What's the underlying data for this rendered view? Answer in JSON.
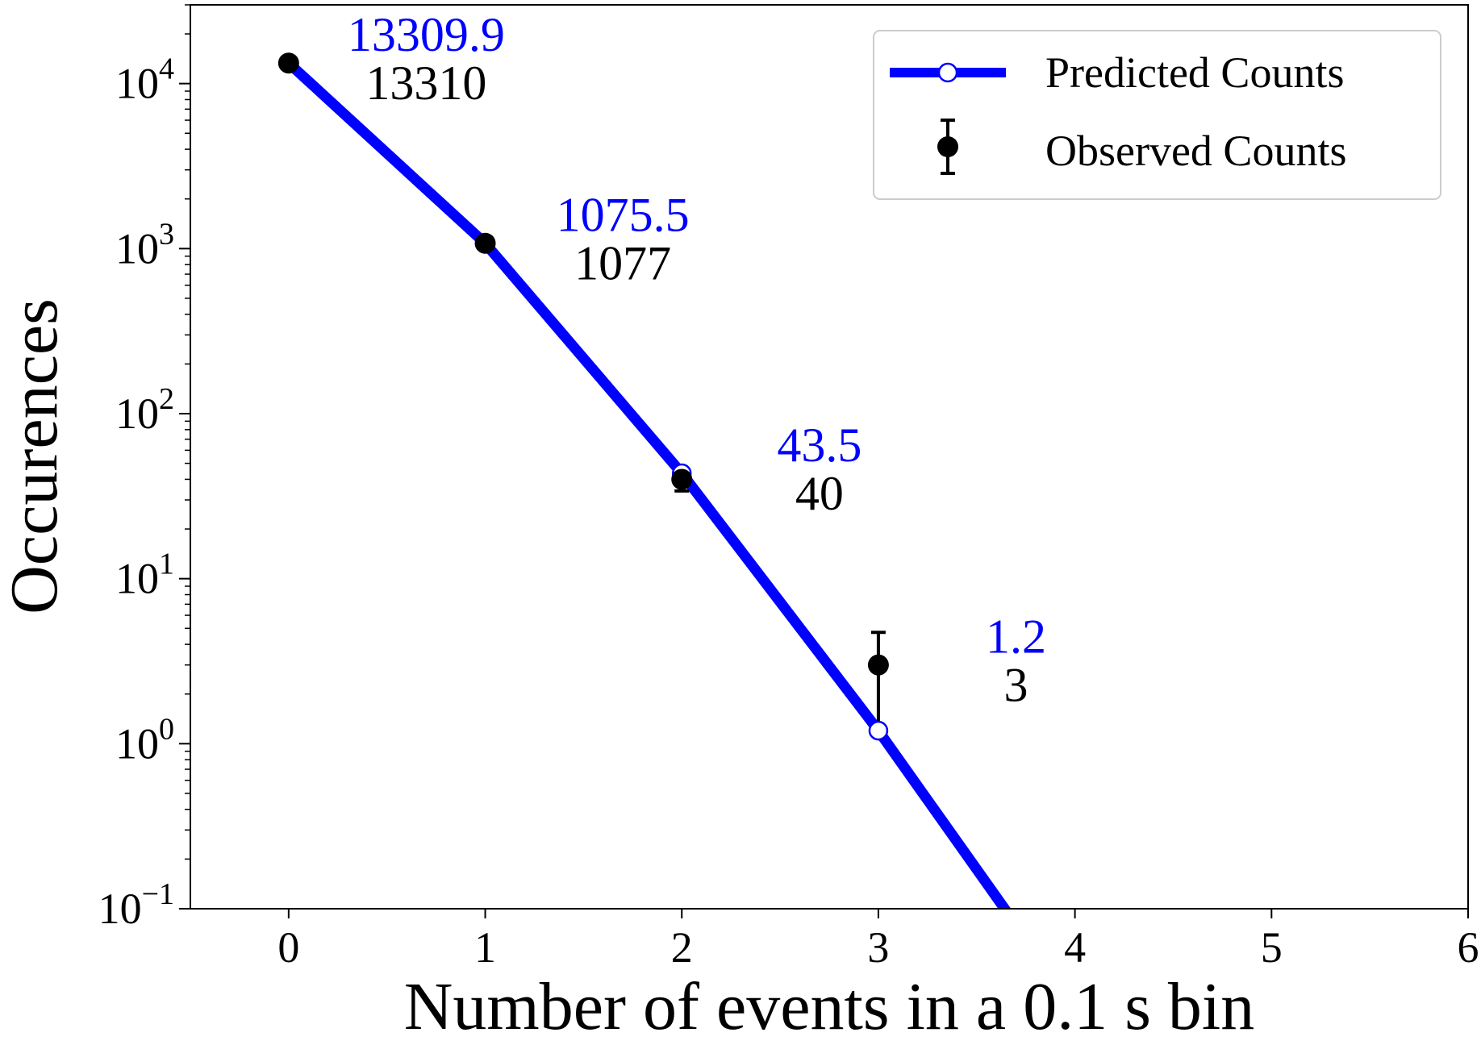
{
  "chart_data": {
    "type": "line",
    "xlabel": "Number of events in a 0.1 s bin",
    "ylabel": "Occurences",
    "yscale": "log",
    "xlim": [
      -0.5,
      6
    ],
    "ylim": [
      0.1,
      30000
    ],
    "x_ticks": [
      0,
      1,
      2,
      3,
      4,
      5,
      6
    ],
    "y_ticks": [
      {
        "value": 0.1,
        "base": "10",
        "exp": "−1"
      },
      {
        "value": 1,
        "base": "10",
        "exp": "0"
      },
      {
        "value": 10,
        "base": "10",
        "exp": "1"
      },
      {
        "value": 100,
        "base": "10",
        "exp": "2"
      },
      {
        "value": 1000,
        "base": "10",
        "exp": "3"
      },
      {
        "value": 10000,
        "base": "10",
        "exp": "4"
      }
    ],
    "legend": {
      "position": "top-right"
    },
    "series": [
      {
        "name": "Predicted Counts",
        "style": "line-with-open-markers",
        "color": "#0000ff",
        "x": [
          0,
          1,
          2,
          3,
          3.7
        ],
        "y": [
          13309.9,
          1075.5,
          43.5,
          1.2,
          0.08
        ]
      },
      {
        "name": "Observed Counts",
        "style": "errorbar",
        "color": "#000000",
        "x": [
          0,
          1,
          2,
          3
        ],
        "y": [
          13310,
          1077,
          40,
          3
        ],
        "yerr_low": [
          115,
          33,
          6,
          1.73
        ],
        "yerr_high": [
          115,
          33,
          6,
          1.73
        ]
      }
    ],
    "annotations": [
      {
        "x": 0,
        "predicted": "13309.9",
        "observed": "13310"
      },
      {
        "x": 1,
        "predicted": "1075.5",
        "observed": "1077"
      },
      {
        "x": 2,
        "predicted": "43.5",
        "observed": "40"
      },
      {
        "x": 3,
        "predicted": "1.2",
        "observed": "3"
      }
    ]
  }
}
